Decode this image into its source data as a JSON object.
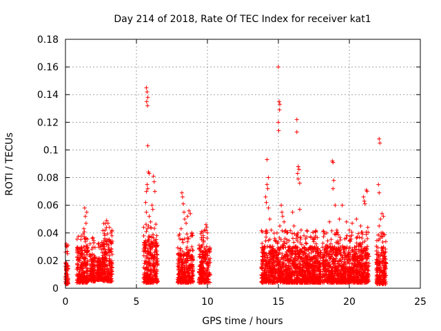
{
  "chart_data": {
    "type": "scatter",
    "title": "Day 214 of 2018, Rate Of TEC Index for receiver kat1",
    "xlabel": "GPS time / hours",
    "ylabel": "ROTI / TECUs",
    "xlim": [
      0,
      25
    ],
    "ylim": [
      0,
      0.18
    ],
    "xticks": [
      0,
      5,
      10,
      15,
      20,
      25
    ],
    "yticks": [
      0,
      0.02,
      0.04,
      0.06,
      0.08,
      0.1,
      0.12,
      0.14,
      0.16,
      0.18
    ],
    "grid": true,
    "marker": "+",
    "marker_color": "#ff0000",
    "clusters": [
      {
        "x_start": 0.0,
        "x_end": 0.2,
        "y_low": 0.003,
        "y_high": 0.02,
        "peaks": [
          [
            0.05,
            0.032
          ],
          [
            0.1,
            0.03
          ],
          [
            0.15,
            0.025
          ]
        ]
      },
      {
        "x_start": 0.8,
        "x_end": 1.6,
        "y_low": 0.004,
        "y_high": 0.03,
        "peaks": [
          [
            1.35,
            0.058
          ],
          [
            1.4,
            0.052
          ],
          [
            1.45,
            0.047
          ],
          [
            1.5,
            0.055
          ],
          [
            1.3,
            0.043
          ]
        ]
      },
      {
        "x_start": 1.7,
        "x_end": 2.1,
        "y_low": 0.005,
        "y_high": 0.025,
        "peaks": [
          [
            1.9,
            0.036
          ],
          [
            2.0,
            0.033
          ]
        ]
      },
      {
        "x_start": 2.2,
        "x_end": 2.6,
        "y_low": 0.006,
        "y_high": 0.022,
        "peaks": [
          [
            2.3,
            0.032
          ],
          [
            2.45,
            0.03
          ]
        ]
      },
      {
        "x_start": 2.6,
        "x_end": 3.3,
        "y_low": 0.005,
        "y_high": 0.035,
        "peaks": [
          [
            2.9,
            0.049
          ],
          [
            3.0,
            0.047
          ],
          [
            2.8,
            0.042
          ],
          [
            3.1,
            0.044
          ],
          [
            3.2,
            0.04
          ]
        ]
      },
      {
        "x_start": 5.5,
        "x_end": 6.5,
        "y_low": 0.004,
        "y_high": 0.035,
        "peaks": [
          [
            5.7,
            0.145
          ],
          [
            5.75,
            0.142
          ],
          [
            5.8,
            0.138
          ],
          [
            5.72,
            0.135
          ],
          [
            5.78,
            0.132
          ],
          [
            5.8,
            0.103
          ],
          [
            5.85,
            0.084
          ],
          [
            5.9,
            0.083
          ],
          [
            6.2,
            0.081
          ],
          [
            6.25,
            0.077
          ],
          [
            5.75,
            0.075
          ],
          [
            5.8,
            0.072
          ],
          [
            5.7,
            0.07
          ],
          [
            6.3,
            0.07
          ],
          [
            5.65,
            0.062
          ],
          [
            6.1,
            0.06
          ],
          [
            6.15,
            0.057
          ],
          [
            5.7,
            0.055
          ],
          [
            5.9,
            0.052
          ],
          [
            6.0,
            0.048
          ],
          [
            5.85,
            0.045
          ]
        ]
      },
      {
        "x_start": 7.9,
        "x_end": 9.0,
        "y_low": 0.004,
        "y_high": 0.028,
        "peaks": [
          [
            8.2,
            0.069
          ],
          [
            8.25,
            0.066
          ],
          [
            8.3,
            0.061
          ],
          [
            8.35,
            0.055
          ],
          [
            8.7,
            0.056
          ],
          [
            8.8,
            0.054
          ],
          [
            8.6,
            0.052
          ],
          [
            8.4,
            0.05
          ],
          [
            8.5,
            0.047
          ],
          [
            8.15,
            0.043
          ],
          [
            8.9,
            0.04
          ]
        ]
      },
      {
        "x_start": 9.4,
        "x_end": 10.2,
        "y_low": 0.004,
        "y_high": 0.03,
        "peaks": [
          [
            9.9,
            0.046
          ],
          [
            9.95,
            0.044
          ],
          [
            9.8,
            0.042
          ],
          [
            10.0,
            0.04
          ],
          [
            9.7,
            0.038
          ],
          [
            9.6,
            0.035
          ]
        ]
      },
      {
        "x_start": 13.8,
        "x_end": 18.0,
        "y_low": 0.004,
        "y_high": 0.03,
        "peaks": [
          [
            15.0,
            0.16
          ],
          [
            15.05,
            0.135
          ],
          [
            15.1,
            0.133
          ],
          [
            15.08,
            0.129
          ],
          [
            15.0,
            0.12
          ],
          [
            15.02,
            0.114
          ],
          [
            16.3,
            0.122
          ],
          [
            16.3,
            0.113
          ],
          [
            14.2,
            0.093
          ],
          [
            16.4,
            0.088
          ],
          [
            16.45,
            0.086
          ],
          [
            16.35,
            0.083
          ],
          [
            14.3,
            0.08
          ],
          [
            16.4,
            0.079
          ],
          [
            16.5,
            0.076
          ],
          [
            14.2,
            0.075
          ],
          [
            14.25,
            0.072
          ],
          [
            14.1,
            0.066
          ],
          [
            14.15,
            0.062
          ],
          [
            15.2,
            0.06
          ],
          [
            14.3,
            0.058
          ],
          [
            15.25,
            0.055
          ],
          [
            16.5,
            0.057
          ],
          [
            16.0,
            0.055
          ],
          [
            15.3,
            0.052
          ],
          [
            14.4,
            0.05
          ],
          [
            15.4,
            0.048
          ],
          [
            16.1,
            0.045
          ],
          [
            16.6,
            0.042
          ],
          [
            14.5,
            0.042
          ],
          [
            15.6,
            0.04
          ],
          [
            16.8,
            0.038
          ],
          [
            17.0,
            0.037
          ],
          [
            17.5,
            0.036
          ],
          [
            14.9,
            0.04
          ],
          [
            15.1,
            0.045
          ]
        ]
      },
      {
        "x_start": 18.1,
        "x_end": 21.4,
        "y_low": 0.004,
        "y_high": 0.03,
        "peaks": [
          [
            18.8,
            0.092
          ],
          [
            18.85,
            0.091
          ],
          [
            18.9,
            0.078
          ],
          [
            18.85,
            0.072
          ],
          [
            19.0,
            0.06
          ],
          [
            19.5,
            0.06
          ],
          [
            19.3,
            0.05
          ],
          [
            18.6,
            0.048
          ],
          [
            19.8,
            0.048
          ],
          [
            20.2,
            0.047
          ],
          [
            20.5,
            0.05
          ],
          [
            21.0,
            0.066
          ],
          [
            21.05,
            0.063
          ],
          [
            21.1,
            0.061
          ],
          [
            21.2,
            0.071
          ],
          [
            21.25,
            0.07
          ],
          [
            20.8,
            0.045
          ],
          [
            18.4,
            0.04
          ],
          [
            19.1,
            0.04
          ],
          [
            20.0,
            0.042
          ],
          [
            21.3,
            0.044
          ]
        ]
      },
      {
        "x_start": 21.9,
        "x_end": 22.6,
        "y_low": 0.003,
        "y_high": 0.03,
        "peaks": [
          [
            22.1,
            0.108
          ],
          [
            22.15,
            0.105
          ],
          [
            22.05,
            0.075
          ],
          [
            22.1,
            0.069
          ],
          [
            22.3,
            0.054
          ],
          [
            22.4,
            0.052
          ],
          [
            22.2,
            0.05
          ],
          [
            22.1,
            0.045
          ],
          [
            22.35,
            0.04
          ]
        ]
      }
    ]
  }
}
